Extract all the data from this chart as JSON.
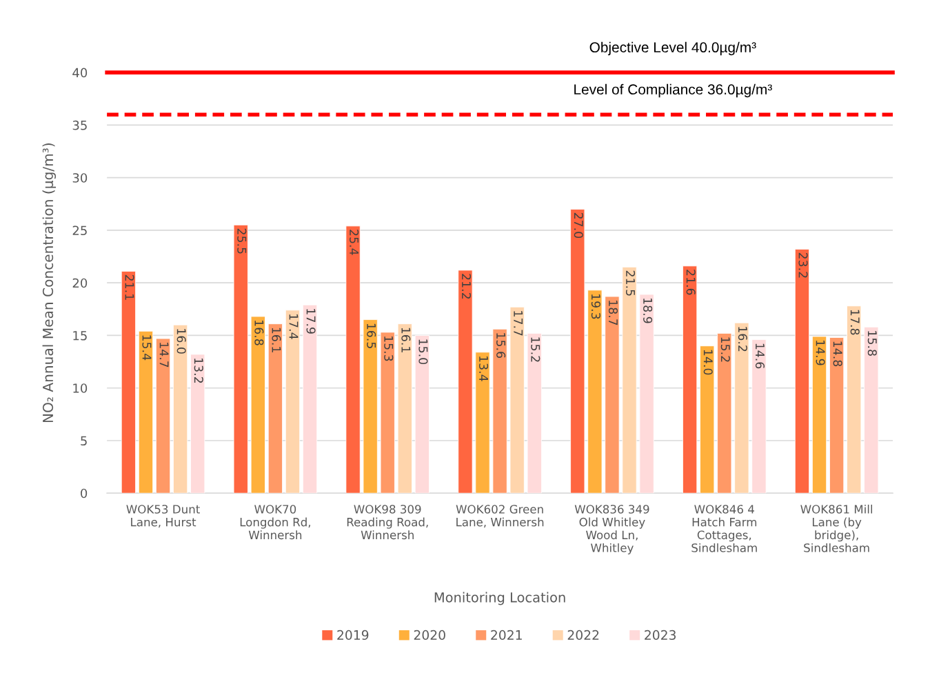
{
  "chart_data": {
    "type": "bar",
    "xlabel": "Monitoring Location",
    "ylabel": "NO₂ Annual Mean Concentration (µg/m³)",
    "categories": [
      "WOK53 Dunt\nLane, Hurst",
      "WOK70\nLongdon Rd,\nWinnersh",
      "WOK98 309\nReading Road,\nWinnersh",
      "WOK602 Green\nLane, Winnersh",
      "WOK836 349\nOld Whitley\nWood Ln,\nWhitley",
      "WOK846 4\nHatch Farm\nCottages,\nSindlesham",
      "WOK861 Mill\nLane (by\nbridge),\nSindlesham"
    ],
    "series": [
      {
        "name": "2019",
        "color": "#ff6640",
        "values": [
          21.1,
          25.5,
          25.4,
          21.2,
          27.0,
          21.6,
          23.2
        ],
        "value_labels": [
          "21.1",
          "25.5",
          "25.4",
          "21.2",
          "27.0",
          "21.6",
          "23.2"
        ]
      },
      {
        "name": "2020",
        "color": "#ffb03c",
        "values": [
          15.4,
          16.8,
          16.5,
          13.4,
          19.3,
          14.0,
          14.9
        ],
        "value_labels": [
          "15.4",
          "16.8",
          "16.5",
          "13.4",
          "19.3",
          "14.0",
          "14.9"
        ]
      },
      {
        "name": "2021",
        "color": "#ff9966",
        "values": [
          14.7,
          16.1,
          15.3,
          15.6,
          18.7,
          15.2,
          14.8
        ],
        "value_labels": [
          "14.7",
          "16.1",
          "15.3",
          "15.6",
          "18.7",
          "15.2",
          "14.8"
        ]
      },
      {
        "name": "2022",
        "color": "#ffd5ac",
        "values": [
          16.0,
          17.4,
          16.1,
          17.7,
          21.5,
          16.2,
          17.8
        ],
        "value_labels": [
          "16.0",
          "17.4",
          "16.1",
          "17.7",
          "21.5",
          "16.2",
          "17.8"
        ]
      },
      {
        "name": "2023",
        "color": "#ffdada",
        "values": [
          13.2,
          17.9,
          15.0,
          15.2,
          18.9,
          14.6,
          15.8
        ],
        "value_labels": [
          "13.2",
          "17.9",
          "15.0",
          "15.2",
          "18.9",
          "14.6",
          "15.8"
        ]
      }
    ],
    "ylim": [
      0,
      40
    ],
    "yticks": [
      0,
      5,
      10,
      15,
      20,
      25,
      30,
      35,
      40
    ],
    "grid": "y",
    "legend": "bottom",
    "ref_lines": [
      {
        "axis": "y",
        "value": 40,
        "label": "Objective Level 40.0µg/m³",
        "color": "#ff0000",
        "line_style": "solid"
      },
      {
        "axis": "y",
        "value": 36,
        "label": "Level of Compliance 36.0µg/m³",
        "color": "#ff0000",
        "line_style": "dashed"
      }
    ]
  }
}
